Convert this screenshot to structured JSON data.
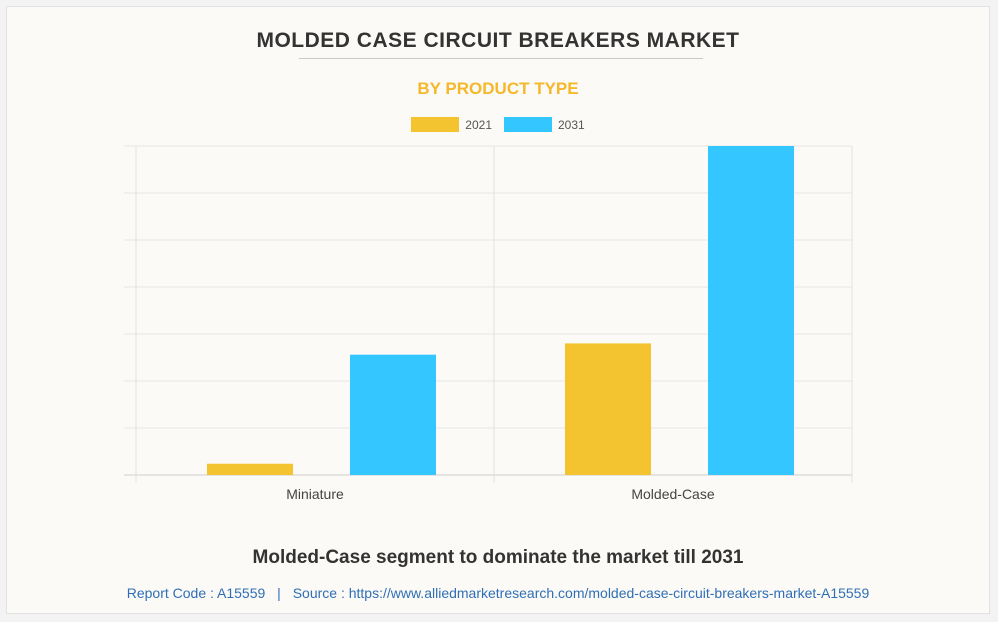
{
  "chart_data": {
    "type": "bar",
    "title": "MOLDED CASE CIRCUIT BREAKERS MARKET",
    "subtitle": "BY PRODUCT TYPE",
    "categories": [
      "Miniature",
      "Molded-Case"
    ],
    "series": [
      {
        "name": "2021",
        "color": "#f4c430",
        "values": [
          0.6,
          7.0
        ]
      },
      {
        "name": "2031",
        "color": "#33c6ff",
        "values": [
          6.4,
          17.5
        ]
      }
    ],
    "ylim": [
      0,
      17.5
    ],
    "grid": true,
    "legend": "top-center",
    "xlabel": "",
    "ylabel": ""
  },
  "headline": "Molded-Case segment to dominate the market till 2031",
  "footer": {
    "report_label": "Report Code : A15559",
    "separator": "|",
    "source_label": "Source : https://www.alliedmarketresearch.com/molded-case-circuit-breakers-market-A15559"
  }
}
